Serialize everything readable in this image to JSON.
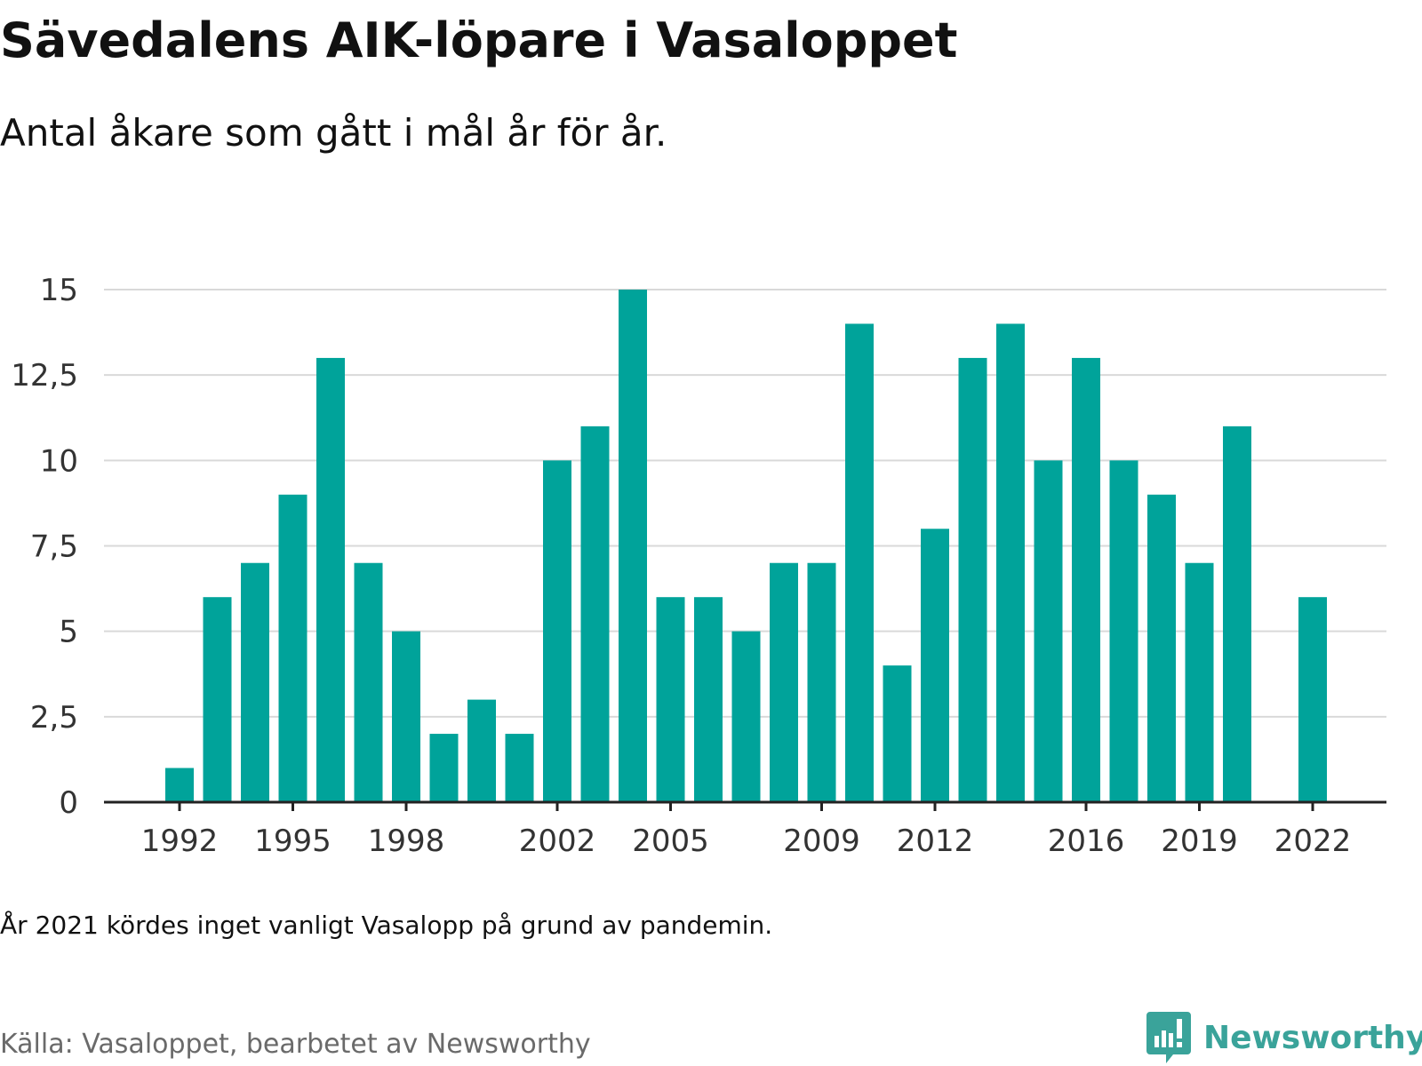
{
  "header": {
    "title": "Sävedalens AIK-löpare i Vasaloppet",
    "subtitle": "Antal åkare som gått i mål år för år."
  },
  "footer": {
    "note": "År 2021 kördes inget vanligt Vasalopp på grund av pandemin.",
    "source": "Källa: Vasaloppet, bearbetet av Newsworthy",
    "brand": "Newsworthy",
    "brand_icon": "chart-bubble-icon"
  },
  "colors": {
    "bar": "#00a39a",
    "grid": "#d9d9d9",
    "axis": "#222222",
    "brand": "#3aa39a"
  },
  "chart_data": {
    "type": "bar",
    "categories": [
      1992,
      1993,
      1994,
      1995,
      1996,
      1997,
      1998,
      1999,
      2000,
      2001,
      2002,
      2003,
      2004,
      2005,
      2006,
      2007,
      2008,
      2009,
      2010,
      2011,
      2012,
      2013,
      2014,
      2015,
      2016,
      2017,
      2018,
      2019,
      2020,
      2021,
      2022
    ],
    "values": [
      1,
      6,
      7,
      9,
      13,
      7,
      5,
      2,
      3,
      2,
      10,
      11,
      15,
      6,
      6,
      5,
      7,
      7,
      14,
      4,
      8,
      13,
      14,
      10,
      13,
      10,
      9,
      7,
      11,
      null,
      6
    ],
    "x_tick_labels": [
      "1992",
      "1995",
      "1998",
      "2002",
      "2005",
      "2009",
      "2012",
      "2016",
      "2019",
      "2022"
    ],
    "y_ticks": [
      0,
      2.5,
      5,
      7.5,
      10,
      12.5,
      15
    ],
    "y_tick_labels": [
      "0",
      "2,5",
      "5",
      "7,5",
      "10",
      "12,5",
      "15"
    ],
    "ylim": [
      0,
      15
    ],
    "grid": true
  }
}
